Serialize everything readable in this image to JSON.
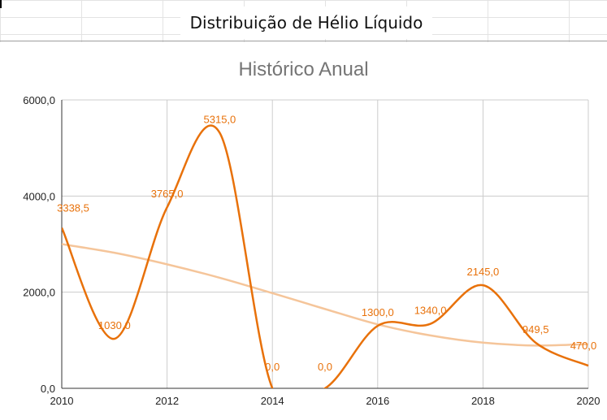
{
  "sheet": {
    "title": "Distribuição de Hélio Líquido"
  },
  "chart_data": {
    "type": "line",
    "title": "Histórico Anual",
    "xlabel": "",
    "ylabel": "",
    "x": [
      2010,
      2011,
      2012,
      2013,
      2014,
      2015,
      2016,
      2017,
      2018,
      2019,
      2020
    ],
    "xticks": [
      "2010",
      "2012",
      "2014",
      "2016",
      "2018",
      "2020"
    ],
    "xlim": [
      2010,
      2020
    ],
    "ylim": [
      0,
      6000
    ],
    "yticks": [
      "0,0",
      "2000,0",
      "4000,0",
      "6000,0"
    ],
    "grid": true,
    "legend": "none",
    "series": [
      {
        "values": [
          3338.5,
          1030.0,
          3765.0,
          5315.0,
          0.0,
          0.0,
          1300.0,
          1340.0,
          2145.0,
          949.5,
          470.0
        ],
        "data_labels": [
          "3338,5",
          "1030,0",
          "3765,0",
          "5315,0",
          "0,0",
          "0,0",
          "1300,0",
          "1340,0",
          "2145,0",
          "949,5",
          "470,0"
        ],
        "color": "#e8710a",
        "smooth": true
      }
    ],
    "trendline": {
      "type": "polynomial",
      "values": [
        3000,
        2820,
        2580,
        2300,
        1980,
        1650,
        1330,
        1100,
        950,
        890,
        920
      ],
      "color": "#f5c59a"
    }
  }
}
